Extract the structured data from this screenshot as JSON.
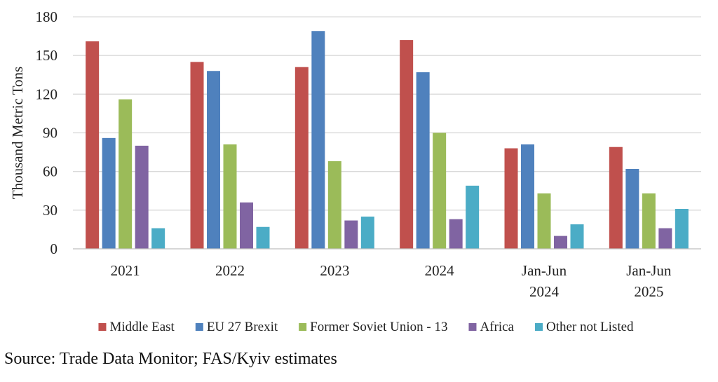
{
  "chart_data": {
    "type": "bar",
    "ylabel": "Thousand Metric Tons",
    "xlabel": "",
    "ylim": [
      0,
      180
    ],
    "yticks": [
      "0",
      "30",
      "60",
      "90",
      "120",
      "150",
      "180"
    ],
    "grid": true,
    "legend_position": "bottom",
    "categories": [
      [
        "2021"
      ],
      [
        "2022"
      ],
      [
        "2023"
      ],
      [
        "2024"
      ],
      [
        "Jan-Jun",
        "2024"
      ],
      [
        "Jan-Jun",
        "2025"
      ]
    ],
    "series": [
      {
        "name": "Middle East",
        "color": "#C0504D",
        "values": [
          161,
          145,
          141,
          162,
          78,
          79
        ]
      },
      {
        "name": "EU 27 Brexit",
        "color": "#4F81BD",
        "values": [
          86,
          138,
          169,
          137,
          81,
          62
        ]
      },
      {
        "name": "Former Soviet Union - 13",
        "color": "#9BBB59",
        "values": [
          116,
          81,
          68,
          90,
          43,
          43
        ]
      },
      {
        "name": "Africa",
        "color": "#8064A2",
        "values": [
          80,
          36,
          22,
          23,
          10,
          16
        ]
      },
      {
        "name": "Other not Listed",
        "color": "#4BACC6",
        "values": [
          16,
          17,
          25,
          49,
          19,
          31
        ]
      }
    ]
  },
  "source": "Source: Trade Data Monitor; FAS/Kyiv estimates"
}
